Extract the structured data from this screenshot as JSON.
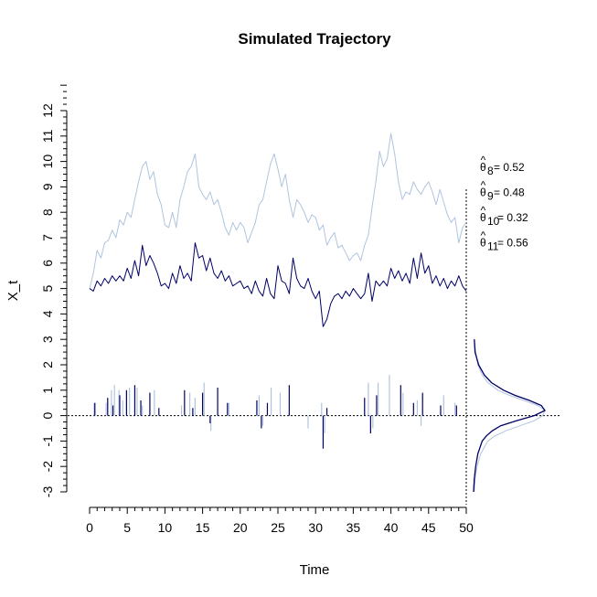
{
  "chart_data": {
    "type": "line",
    "title": "Simulated Trajectory",
    "xlabel": "Time",
    "ylabel": "X_t",
    "xlim": [
      0,
      50
    ],
    "ylim": [
      -3,
      13
    ],
    "x_ticks": [
      0,
      5,
      10,
      15,
      20,
      25,
      30,
      35,
      40,
      45,
      50
    ],
    "y_ticks": [
      -3,
      -2,
      -1,
      0,
      1,
      2,
      3,
      4,
      5,
      6,
      7,
      8,
      9,
      10,
      11,
      12
    ],
    "x_tick_labels": [
      "0",
      "5",
      "10",
      "15",
      "20",
      "25",
      "30",
      "35",
      "40",
      "45",
      "50"
    ],
    "y_tick_labels": [
      "-3",
      "-2",
      "-1",
      "0",
      "1",
      "2",
      "3",
      "4",
      "5",
      "6",
      "7",
      "8",
      "9",
      "10",
      "11",
      "12"
    ],
    "grid": false,
    "series": [
      {
        "color": "#b0c4de",
        "x": [
          0.0,
          0.5,
          1.0,
          1.5,
          2.0,
          2.5,
          3.0,
          3.5,
          4.0,
          4.5,
          5.0,
          5.5,
          6.0,
          6.5,
          7.0,
          7.5,
          8.0,
          8.5,
          9.0,
          9.5,
          10.0,
          10.5,
          11.0,
          11.5,
          12.0,
          12.5,
          13.0,
          13.5,
          14.0,
          14.5,
          15.0,
          15.5,
          16.0,
          16.5,
          17.0,
          17.5,
          18.0,
          18.5,
          19.0,
          19.5,
          20.0,
          20.5,
          21.0,
          21.5,
          22.0,
          22.5,
          23.0,
          23.5,
          24.0,
          24.5,
          25.0,
          25.5,
          26.0,
          26.5,
          27.0,
          27.5,
          28.0,
          28.5,
          29.0,
          29.5,
          30.0,
          30.5,
          31.0,
          31.5,
          32.0,
          32.5,
          33.0,
          33.5,
          34.0,
          34.5,
          35.0,
          35.5,
          36.0,
          36.5,
          37.0,
          37.5,
          38.0,
          38.5,
          39.0,
          39.5,
          40.0,
          40.5,
          41.0,
          41.5,
          42.0,
          42.5,
          43.0,
          43.5,
          44.0,
          44.5,
          45.0,
          45.5,
          46.0,
          46.5,
          47.0,
          47.5,
          48.0,
          48.5,
          49.0,
          49.5,
          50.0
        ],
        "y": [
          5.0,
          5.6,
          6.5,
          6.2,
          6.8,
          6.9,
          7.3,
          7.0,
          7.7,
          7.5,
          8.0,
          7.8,
          8.5,
          9.2,
          9.8,
          10.0,
          9.3,
          9.6,
          8.7,
          8.3,
          7.5,
          7.4,
          8.0,
          7.4,
          8.5,
          9.0,
          9.6,
          9.8,
          10.3,
          9.0,
          8.7,
          8.5,
          8.8,
          8.3,
          8.5,
          8.0,
          7.4,
          7.1,
          7.6,
          7.3,
          7.6,
          7.4,
          6.8,
          7.2,
          7.6,
          8.3,
          8.5,
          9.2,
          9.9,
          10.3,
          9.7,
          9.0,
          9.5,
          8.5,
          7.8,
          8.5,
          8.3,
          8.0,
          7.6,
          7.9,
          7.8,
          7.3,
          7.5,
          6.7,
          7.0,
          7.2,
          6.6,
          6.7,
          6.4,
          6.1,
          6.3,
          6.4,
          6.1,
          6.7,
          7.1,
          8.2,
          9.2,
          10.4,
          9.8,
          10.1,
          11.1,
          10.3,
          9.2,
          8.5,
          8.8,
          8.7,
          9.2,
          8.9,
          8.7,
          9.0,
          9.2,
          8.8,
          8.3,
          8.9,
          8.4,
          7.9,
          7.6,
          7.8,
          6.8,
          7.4,
          7.6
        ]
      },
      {
        "color": "#000066",
        "x": [
          0.0,
          0.5,
          1.0,
          1.5,
          2.0,
          2.5,
          3.0,
          3.5,
          4.0,
          4.5,
          5.0,
          5.5,
          6.0,
          6.5,
          7.0,
          7.5,
          8.0,
          8.5,
          9.0,
          9.5,
          10.0,
          10.5,
          11.0,
          11.5,
          12.0,
          12.5,
          13.0,
          13.5,
          14.0,
          14.5,
          15.0,
          15.5,
          16.0,
          16.5,
          17.0,
          17.5,
          18.0,
          18.5,
          19.0,
          19.5,
          20.0,
          20.5,
          21.0,
          21.5,
          22.0,
          22.5,
          23.0,
          23.5,
          24.0,
          24.5,
          25.0,
          25.5,
          26.0,
          26.5,
          27.0,
          27.5,
          28.0,
          28.5,
          29.0,
          29.5,
          30.0,
          30.5,
          31.0,
          31.5,
          32.0,
          32.5,
          33.0,
          33.5,
          34.0,
          34.5,
          35.0,
          35.5,
          36.0,
          36.5,
          37.0,
          37.5,
          38.0,
          38.5,
          39.0,
          39.5,
          40.0,
          40.5,
          41.0,
          41.5,
          42.0,
          42.5,
          43.0,
          43.5,
          44.0,
          44.5,
          45.0,
          45.5,
          46.0,
          46.5,
          47.0,
          47.5,
          48.0,
          48.5,
          49.0,
          49.5,
          50.0
        ],
        "y": [
          5.0,
          4.9,
          5.3,
          5.1,
          5.4,
          5.2,
          5.5,
          5.3,
          5.5,
          5.3,
          5.8,
          5.4,
          6.1,
          5.5,
          6.7,
          5.9,
          6.3,
          6.0,
          5.6,
          5.1,
          5.2,
          5.0,
          5.6,
          5.2,
          5.9,
          5.4,
          5.6,
          5.3,
          6.8,
          6.2,
          6.3,
          5.7,
          6.2,
          5.6,
          5.4,
          5.7,
          5.3,
          5.5,
          5.1,
          5.2,
          5.3,
          5.0,
          5.1,
          4.8,
          5.3,
          4.9,
          4.7,
          5.4,
          4.8,
          4.6,
          5.9,
          5.3,
          5.2,
          4.8,
          6.2,
          5.4,
          5.1,
          5.0,
          5.4,
          4.9,
          4.6,
          4.9,
          3.5,
          3.8,
          4.4,
          4.7,
          4.8,
          4.6,
          4.9,
          4.7,
          5.0,
          4.8,
          4.6,
          4.8,
          5.6,
          4.5,
          5.3,
          5.1,
          5.3,
          5.1,
          5.8,
          5.4,
          5.7,
          5.3,
          5.6,
          5.2,
          6.2,
          5.4,
          6.4,
          5.6,
          5.9,
          5.2,
          5.5,
          5.1,
          5.4,
          5.0,
          5.3,
          5.1,
          5.5,
          5.1,
          4.9
        ]
      }
    ],
    "jumps": [
      {
        "color": "#b0c4de",
        "x": [
          0.6,
          2.2,
          2.9,
          3.3,
          3.9,
          4.4,
          5.3,
          6.3,
          7.0,
          8.6,
          12.2,
          13.3,
          14.0,
          15.2,
          16.1,
          18.5,
          22.5,
          23.0,
          24.1,
          25.3,
          29.0,
          30.8,
          31.2,
          37.0,
          37.6,
          38.3,
          39.8,
          41.6,
          43.5,
          44.0,
          47.0,
          48.5
        ],
        "y": [
          0.5,
          0.5,
          1.0,
          1.2,
          1.0,
          0.6,
          1.1,
          1.1,
          0.4,
          1.0,
          0.4,
          0.9,
          0.7,
          1.3,
          -0.6,
          0.5,
          0.8,
          -0.4,
          1.1,
          0.9,
          -0.5,
          0.5,
          -0.7,
          1.3,
          -0.5,
          1.3,
          1.6,
          0.9,
          0.6,
          -0.4,
          0.8,
          0.5
        ]
      },
      {
        "color": "#000066",
        "x": [
          0.7,
          2.4,
          3.1,
          4.0,
          4.9,
          6.0,
          6.8,
          8.0,
          9.2,
          12.6,
          13.7,
          15.0,
          16.0,
          17.0,
          18.3,
          22.2,
          22.8,
          23.6,
          26.5,
          31.0,
          31.5,
          36.5,
          37.3,
          38.1,
          41.3,
          43.0,
          44.2,
          46.6,
          48.7
        ],
        "y": [
          0.5,
          0.7,
          0.4,
          0.8,
          1.0,
          1.2,
          0.6,
          0.9,
          0.3,
          1.0,
          0.3,
          0.9,
          -0.3,
          1.1,
          0.5,
          0.6,
          -0.5,
          0.5,
          1.2,
          -1.3,
          0.3,
          0.7,
          -0.7,
          0.8,
          1.2,
          0.5,
          0.9,
          0.4,
          0.4
        ]
      }
    ],
    "density_curves": [
      {
        "color": "#b0c4de",
        "y": [
          -3.0,
          -2.5,
          -2.0,
          -1.5,
          -1.0,
          -0.8,
          -0.6,
          -0.4,
          -0.2,
          0.0,
          0.2,
          0.4,
          0.6,
          0.8,
          1.0,
          1.3,
          1.6,
          2.0,
          2.5,
          3.0
        ],
        "density": [
          0.01,
          0.02,
          0.05,
          0.1,
          0.2,
          0.3,
          0.45,
          0.65,
          0.85,
          0.97,
          1.0,
          0.9,
          0.7,
          0.5,
          0.34,
          0.2,
          0.12,
          0.06,
          0.03,
          0.01
        ]
      },
      {
        "color": "#000066",
        "y": [
          -3.0,
          -2.5,
          -2.0,
          -1.5,
          -1.0,
          -0.8,
          -0.6,
          -0.4,
          -0.2,
          0.0,
          0.2,
          0.4,
          0.6,
          0.8,
          1.0,
          1.3,
          1.6,
          2.0,
          2.5,
          3.0
        ],
        "density": [
          0.0,
          0.01,
          0.03,
          0.06,
          0.12,
          0.18,
          0.26,
          0.38,
          0.6,
          0.85,
          1.0,
          0.95,
          0.78,
          0.58,
          0.42,
          0.25,
          0.15,
          0.07,
          0.02,
          0.01
        ]
      }
    ],
    "reference_lines": {
      "horizontal_y": 0,
      "vertical_x": 50
    },
    "annotations": [
      {
        "hat": "^",
        "symbol": "θ",
        "subscript": "8",
        "equals": "= 0.52"
      },
      {
        "hat": "^",
        "symbol": "θ",
        "subscript": "9",
        "equals": "= 0.48"
      },
      {
        "hat": "^",
        "symbol": "θ",
        "subscript": "10",
        "equals": "= 0.32"
      },
      {
        "hat": "^",
        "symbol": "θ",
        "subscript": "11",
        "equals": "= 0.56"
      }
    ]
  }
}
